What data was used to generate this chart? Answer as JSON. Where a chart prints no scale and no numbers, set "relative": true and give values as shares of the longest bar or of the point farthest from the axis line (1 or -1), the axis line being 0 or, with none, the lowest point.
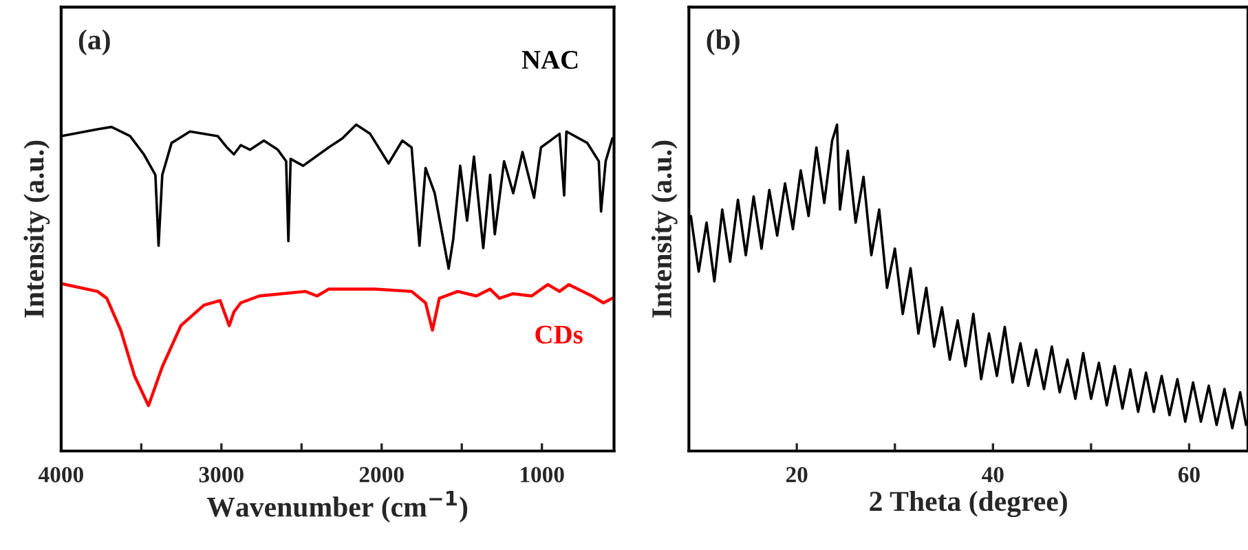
{
  "chart_data": [
    {
      "type": "line",
      "relative": true,
      "xlabel": "Wavenumber (cm$^{−1}$)",
      "ylabel": "Intensity (a.u.)",
      "annotations": [
        "(a)"
      ],
      "tick_labels": "x",
      "xlim": [
        4000,
        550
      ],
      "xticks": [
        4000,
        {
          "value": 3500,
          "label": null
        },
        3000,
        {
          "value": 2500,
          "label": null
        },
        2000,
        {
          "value": 1500,
          "label": null
        },
        1000
      ],
      "series": [
        {
          "name": "NAC",
          "color": "#000000",
          "x": [
            4000,
            3773,
            3686,
            3570,
            3484,
            3412,
            3392,
            3369,
            3311,
            3196,
            3023,
            2965,
            2922,
            2879,
            2821,
            2735,
            2648,
            2596,
            2582,
            2568,
            2490,
            2331,
            2245,
            2159,
            2072,
            1957,
            1871,
            1813,
            1764,
            1726,
            1669,
            1611,
            1582,
            1553,
            1510,
            1467,
            1424,
            1366,
            1323,
            1294,
            1236,
            1179,
            1121,
            1049,
            1006,
            890,
            861,
            847,
            717,
            645,
            631,
            602,
            560
          ],
          "values": [
            0.965,
            0.986,
            0.993,
            0.965,
            0.909,
            0.846,
            0.629,
            0.846,
            0.944,
            0.979,
            0.965,
            0.93,
            0.909,
            0.937,
            0.923,
            0.951,
            0.923,
            0.888,
            0.643,
            0.895,
            0.874,
            0.93,
            0.958,
            1.0,
            0.972,
            0.881,
            0.951,
            0.93,
            0.629,
            0.867,
            0.79,
            0.636,
            0.559,
            0.65,
            0.874,
            0.706,
            0.902,
            0.622,
            0.846,
            0.664,
            0.888,
            0.79,
            0.916,
            0.776,
            0.93,
            0.972,
            0.783,
            0.979,
            0.944,
            0.888,
            0.734,
            0.888,
            0.958
          ]
        },
        {
          "name": "CDs",
          "color": "#ff0000",
          "x": [
            4000,
            3773,
            3715,
            3628,
            3542,
            3455,
            3369,
            3253,
            3109,
            3008,
            2951,
            2922,
            2879,
            2764,
            2476,
            2403,
            2331,
            2043,
            1813,
            1726,
            1683,
            1640,
            1525,
            1409,
            1323,
            1265,
            1179,
            1064,
            963,
            890,
            832,
            688,
            616,
            560
          ],
          "values": [
            0.513,
            0.489,
            0.468,
            0.37,
            0.23,
            0.139,
            0.258,
            0.384,
            0.447,
            0.461,
            0.384,
            0.426,
            0.454,
            0.475,
            0.489,
            0.475,
            0.496,
            0.496,
            0.489,
            0.454,
            0.37,
            0.468,
            0.489,
            0.475,
            0.496,
            0.468,
            0.482,
            0.475,
            0.51,
            0.489,
            0.51,
            0.475,
            0.454,
            0.468
          ]
        }
      ]
    },
    {
      "type": "line",
      "relative": true,
      "xlabel": "2 Theta (degree)",
      "ylabel": "Intensity (a.u.)",
      "annotations": [
        "(b)"
      ],
      "tick_labels": "x",
      "xlim": [
        9,
        66
      ],
      "xticks": [
        20,
        {
          "value": 30,
          "label": null
        },
        40,
        {
          "value": 50,
          "label": null
        },
        60
      ],
      "series": [
        {
          "color": "#000000",
          "x": [
            9.2,
            10.0,
            10.8,
            11.6,
            12.4,
            13.2,
            14.0,
            14.8,
            15.6,
            16.4,
            17.2,
            18.0,
            18.8,
            19.6,
            20.4,
            21.2,
            22.0,
            22.8,
            23.6,
            24.1,
            24.4,
            25.2,
            26.0,
            26.8,
            27.6,
            28.4,
            29.2,
            30.0,
            30.8,
            31.6,
            32.4,
            33.2,
            34.0,
            34.8,
            35.6,
            36.4,
            37.2,
            38.0,
            38.8,
            39.6,
            40.4,
            41.2,
            42.0,
            42.8,
            43.6,
            44.4,
            45.2,
            46.0,
            46.8,
            47.6,
            48.4,
            49.2,
            50.0,
            50.8,
            51.6,
            52.4,
            53.2,
            54.0,
            54.8,
            55.6,
            56.4,
            57.2,
            58.0,
            58.8,
            59.6,
            60.4,
            61.2,
            62.0,
            62.8,
            63.6,
            64.4,
            65.2,
            65.8
          ],
          "values": [
            0.72,
            0.55,
            0.7,
            0.52,
            0.74,
            0.58,
            0.77,
            0.6,
            0.78,
            0.62,
            0.8,
            0.66,
            0.82,
            0.68,
            0.86,
            0.72,
            0.93,
            0.76,
            0.95,
            1.0,
            0.74,
            0.92,
            0.7,
            0.84,
            0.6,
            0.74,
            0.5,
            0.62,
            0.42,
            0.56,
            0.36,
            0.5,
            0.32,
            0.44,
            0.28,
            0.4,
            0.26,
            0.42,
            0.22,
            0.36,
            0.23,
            0.38,
            0.21,
            0.33,
            0.2,
            0.31,
            0.19,
            0.32,
            0.18,
            0.28,
            0.16,
            0.3,
            0.16,
            0.27,
            0.14,
            0.26,
            0.13,
            0.25,
            0.12,
            0.24,
            0.12,
            0.23,
            0.11,
            0.22,
            0.09,
            0.21,
            0.09,
            0.2,
            0.08,
            0.19,
            0.07,
            0.18,
            0.08
          ]
        }
      ]
    }
  ]
}
